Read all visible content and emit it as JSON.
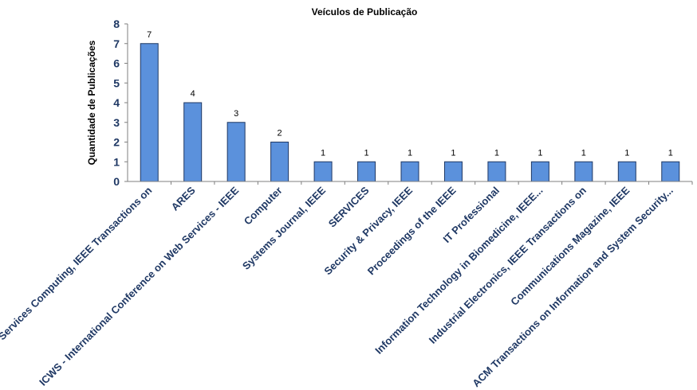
{
  "chart_data": {
    "type": "bar",
    "title": "Veículos de Publicação",
    "xlabel": "",
    "ylabel": "Quantidade de Publicações",
    "ylim": [
      0,
      8
    ],
    "yticks": [
      0,
      1,
      2,
      3,
      4,
      5,
      6,
      7,
      8
    ],
    "grid": false,
    "legend": "none",
    "colors": {
      "bar_fill": "#5b91dc",
      "bar_stroke": "#1f3864",
      "tick_text": "#1f3864"
    },
    "categories": [
      "Services Computing, IEEE Transactions on",
      "ARES",
      "ICWS - International Conference on Web Services - IEEE",
      "Computer",
      "Systems Journal, IEEE",
      "SERVICES",
      "Security & Privacy, IEEE",
      "Proceedings of the IEEE",
      "IT Professional",
      "Information Technology in Biomedicine, IEEE...",
      "Industrial Electronics, IEEE Transactions on",
      "Communications Magazine, IEEE",
      "ACM Transactions on Information and System Security..."
    ],
    "values": [
      7,
      4,
      3,
      2,
      1,
      1,
      1,
      1,
      1,
      1,
      1,
      1,
      1
    ]
  }
}
